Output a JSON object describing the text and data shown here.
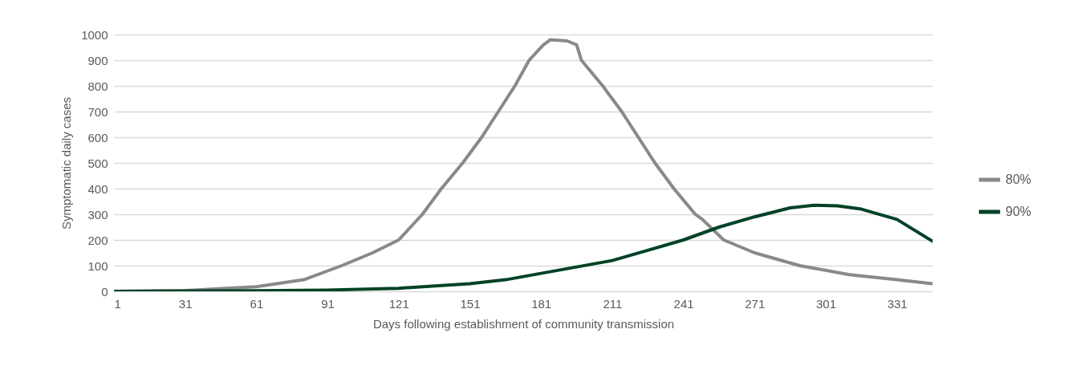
{
  "chart_data": {
    "type": "line",
    "xlabel": "Days following establishment of community transmission",
    "ylabel": "Symptomatic daily cases",
    "xlim": [
      1,
      346
    ],
    "xticks": [
      1,
      31,
      61,
      91,
      121,
      151,
      181,
      211,
      241,
      271,
      301,
      331
    ],
    "ylim": [
      0,
      1000
    ],
    "yticks": [
      0,
      100,
      200,
      300,
      400,
      500,
      600,
      700,
      800,
      900,
      1000
    ],
    "grid": "y",
    "legend": "right",
    "series": [
      {
        "name": "80%",
        "color": "#898989",
        "x": [
          1,
          31,
          61,
          81,
          97,
          110,
          121,
          131,
          139,
          148,
          156,
          163,
          170,
          176,
          182,
          185,
          192,
          196,
          198,
          207,
          215,
          222,
          229,
          237,
          246,
          249,
          258,
          271,
          290,
          311,
          331,
          346
        ],
        "values": [
          0,
          3,
          18,
          45,
          100,
          150,
          200,
          300,
          400,
          500,
          600,
          700,
          800,
          900,
          960,
          980,
          975,
          960,
          900,
          800,
          700,
          600,
          500,
          400,
          300,
          280,
          200,
          150,
          100,
          65,
          45,
          30
        ]
      },
      {
        "name": "90%",
        "color": "#004225",
        "x": [
          1,
          61,
          91,
          121,
          151,
          166,
          181,
          196,
          211,
          226,
          241,
          256,
          271,
          286,
          296,
          306,
          316,
          331,
          346
        ],
        "values": [
          0,
          2,
          5,
          12,
          30,
          45,
          70,
          95,
          120,
          160,
          200,
          250,
          290,
          325,
          335,
          333,
          320,
          280,
          195
        ]
      }
    ]
  }
}
